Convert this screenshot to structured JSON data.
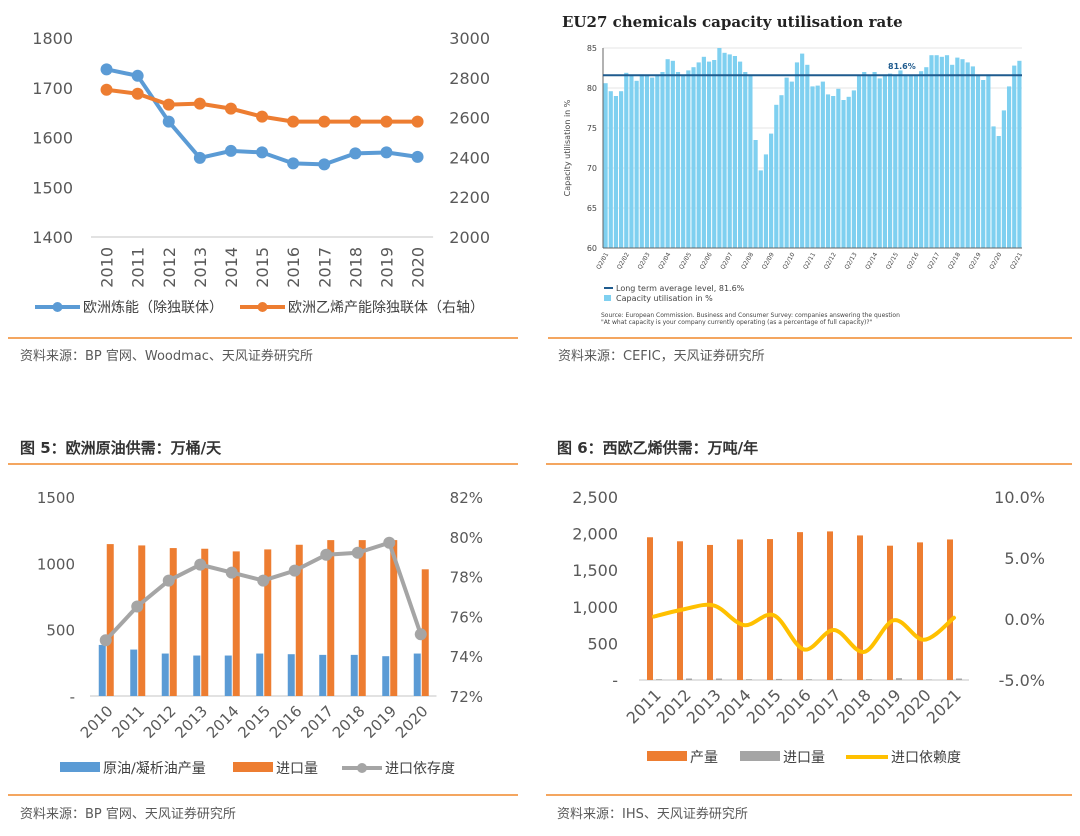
{
  "colors": {
    "accent_rule": "#f0882c",
    "blue": "#5b9bd5",
    "orange": "#ed7d31",
    "gray": "#a5a5a5",
    "yellow": "#ffc000",
    "eu_bar": "#7fd0f0",
    "eu_line": "#1f5b8e"
  },
  "chart_data": [
    {
      "id": "refining",
      "type": "line",
      "title": "",
      "categories": [
        "2010",
        "2011",
        "2012",
        "2013",
        "2014",
        "2015",
        "2016",
        "2017",
        "2018",
        "2019",
        "2020"
      ],
      "y_left": {
        "ticks": [
          "1400",
          "1500",
          "1600",
          "1700",
          "1800"
        ],
        "range": [
          1400,
          1800
        ]
      },
      "y_right": {
        "ticks": [
          "2000",
          "2200",
          "2400",
          "2600",
          "2800",
          "3000"
        ],
        "range": [
          2000,
          3000
        ]
      },
      "series": [
        {
          "name": "欧洲炼能（除独联体）",
          "axis": "left",
          "color": "#5b9bd5",
          "values": [
            1737,
            1724,
            1632,
            1559,
            1573,
            1570,
            1548,
            1546,
            1568,
            1570,
            1561
          ]
        },
        {
          "name": "欧洲乙烯产能除独联体（右轴）",
          "axis": "right",
          "color": "#ed7d31",
          "values": [
            2740,
            2720,
            2665,
            2670,
            2645,
            2605,
            2580,
            2580,
            2580,
            2580,
            2580
          ]
        }
      ],
      "source": "资料来源：BP 官网、Woodmac、天风证券研究所"
    },
    {
      "id": "eu27",
      "type": "bar",
      "title": "EU27 chemicals capacity utilisation rate",
      "ylabel": "Capacity utilisation in %",
      "ylim": [
        60,
        85
      ],
      "y_ticks": [
        "60",
        "65",
        "70",
        "75",
        "80",
        "85"
      ],
      "x_ticks": [
        "Q2/01",
        "Q2/02",
        "Q2/03",
        "Q2/04",
        "Q2/05",
        "Q2/06",
        "Q2/07",
        "Q2/08",
        "Q2/09",
        "Q2/10",
        "Q2/11",
        "Q2/12",
        "Q2/13",
        "Q2/14",
        "Q2/15",
        "Q2/16",
        "Q2/17",
        "Q2/18",
        "Q2/19",
        "Q2/20",
        "Q2/21"
      ],
      "values": [
        80.6,
        79.6,
        79.0,
        79.6,
        81.9,
        81.6,
        80.9,
        81.7,
        81.6,
        81.3,
        81.6,
        82.0,
        83.6,
        83.4,
        82.0,
        81.6,
        82.2,
        82.6,
        83.2,
        83.9,
        83.3,
        83.5,
        85.0,
        84.4,
        84.2,
        84.0,
        83.3,
        82.0,
        81.5,
        73.5,
        69.7,
        71.7,
        74.3,
        77.9,
        79.1,
        81.3,
        80.8,
        83.2,
        84.3,
        82.9,
        80.2,
        80.3,
        80.8,
        79.2,
        79.0,
        79.9,
        78.5,
        78.9,
        79.7,
        81.5,
        82.0,
        81.6,
        82.0,
        81.2,
        81.5,
        81.8,
        81.6,
        82.2,
        81.6,
        81.6,
        81.6,
        82.1,
        82.6,
        84.1,
        84.1,
        83.9,
        84.1,
        82.9,
        83.8,
        83.6,
        83.2,
        82.7,
        81.6,
        81.0,
        81.7,
        75.2,
        74.0,
        77.2,
        80.2,
        82.8,
        83.4
      ],
      "average": 81.6,
      "average_label": "81.6%",
      "legend": [
        "Long term average level, 81.6%",
        "Capacity utilisation in %"
      ],
      "note_lines": [
        "Source: European Commission. Business and Consumer Survey: companies answering the question",
        "\"At what capacity is your company currently operating (as a percentage of full capacity)?\""
      ],
      "source": "资料来源：CEFIC，天风证券研究所"
    },
    {
      "id": "crude",
      "type": "bar",
      "title": "图 5：欧洲原油供需：万桶/天",
      "categories": [
        "2010",
        "2011",
        "2012",
        "2013",
        "2014",
        "2015",
        "2016",
        "2017",
        "2018",
        "2019",
        "2020"
      ],
      "y_left": {
        "ticks": [
          "-",
          "500",
          "1000",
          "1500"
        ],
        "range": [
          0,
          1500
        ]
      },
      "y_right": {
        "ticks": [
          "72%",
          "74%",
          "76%",
          "78%",
          "80%",
          "82%"
        ],
        "range": [
          72,
          82
        ]
      },
      "series": [
        {
          "name": "原油/凝析油产量",
          "kind": "bar",
          "axis": "left",
          "color": "#5b9bd5",
          "values": [
            385,
            350,
            320,
            305,
            305,
            320,
            315,
            310,
            310,
            300,
            320
          ]
        },
        {
          "name": "进口量",
          "kind": "bar",
          "axis": "left",
          "color": "#ed7d31",
          "values": [
            1145,
            1135,
            1115,
            1110,
            1090,
            1105,
            1140,
            1175,
            1175,
            1175,
            955
          ]
        },
        {
          "name": "进口依存度",
          "kind": "line",
          "axis": "right",
          "color": "#a5a5a5",
          "values": [
            74.8,
            76.5,
            77.8,
            78.6,
            78.2,
            77.8,
            78.3,
            79.1,
            79.2,
            79.7,
            75.1
          ]
        }
      ],
      "source": "资料来源：BP 官网、天风证券研究所"
    },
    {
      "id": "ethylene",
      "type": "bar",
      "title": "图 6：西欧乙烯供需：万吨/年",
      "categories": [
        "2011",
        "2012",
        "2013",
        "2014",
        "2015",
        "2016",
        "2017",
        "2018",
        "2019",
        "2020",
        "2021"
      ],
      "y_left": {
        "ticks": [
          "-",
          "500",
          "1,000",
          "1,500",
          "2,000",
          "2,500"
        ],
        "range": [
          0,
          2500
        ]
      },
      "y_right": {
        "ticks": [
          "-5.0%",
          "0.0%",
          "5.0%",
          "10.0%"
        ],
        "range": [
          -5,
          10
        ]
      },
      "series": [
        {
          "name": "产量",
          "kind": "bar",
          "axis": "left",
          "color": "#ed7d31",
          "values": [
            1950,
            1895,
            1845,
            1920,
            1925,
            2020,
            2030,
            1975,
            1835,
            1880,
            1920
          ]
        },
        {
          "name": "进口量",
          "kind": "bar",
          "axis": "left",
          "color": "#a5a5a5",
          "values": [
            10,
            20,
            20,
            10,
            15,
            10,
            15,
            10,
            25,
            5,
            20
          ]
        },
        {
          "name": "进口依赖度",
          "kind": "smooth",
          "axis": "right",
          "color": "#ffc000",
          "values": [
            0.2,
            0.8,
            1.1,
            -0.5,
            0.3,
            -2.5,
            -0.9,
            -2.7,
            -0.1,
            -1.7,
            0.1
          ]
        }
      ],
      "source": "资料来源：IHS、天风证券研究所"
    }
  ]
}
